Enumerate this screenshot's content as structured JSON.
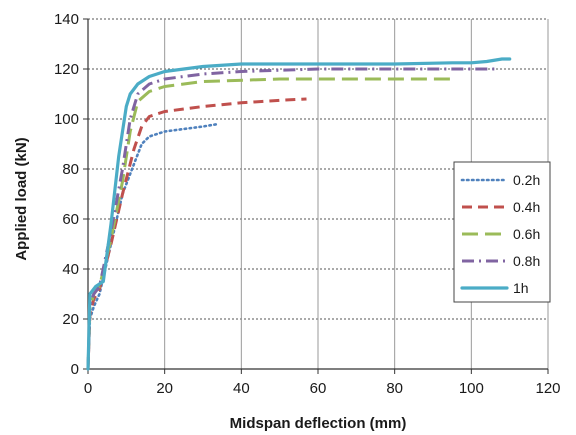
{
  "chart_data": {
    "type": "line",
    "title": "",
    "xlabel": "Midspan deflection (mm)",
    "ylabel": "Applied load (kN)",
    "xlim": [
      0,
      120
    ],
    "ylim": [
      0,
      140
    ],
    "xticks": [
      0,
      20,
      40,
      60,
      80,
      100,
      120
    ],
    "yticks": [
      0,
      20,
      40,
      60,
      80,
      100,
      120,
      140
    ],
    "grid": "horizontal dashed + vertical solid",
    "legend_position": "right",
    "series": [
      {
        "name": "0.2h",
        "color": "#4F81BD",
        "dash": "dotted",
        "points": [
          [
            0,
            0
          ],
          [
            0.5,
            20
          ],
          [
            1.5,
            25
          ],
          [
            3,
            30
          ],
          [
            6,
            50
          ],
          [
            9,
            70
          ],
          [
            12,
            82
          ],
          [
            14,
            90
          ],
          [
            16,
            93
          ],
          [
            20,
            95
          ],
          [
            25,
            96
          ],
          [
            30,
            97
          ],
          [
            34,
            98
          ]
        ]
      },
      {
        "name": "0.4h",
        "color": "#C0504D",
        "dash": "dashed",
        "points": [
          [
            0,
            0
          ],
          [
            0.5,
            22
          ],
          [
            1.5,
            28
          ],
          [
            3,
            32
          ],
          [
            6,
            50
          ],
          [
            9,
            70
          ],
          [
            12,
            88
          ],
          [
            14,
            97
          ],
          [
            16,
            101
          ],
          [
            20,
            103
          ],
          [
            30,
            105
          ],
          [
            40,
            106.5
          ],
          [
            50,
            107.5
          ],
          [
            57,
            108
          ]
        ]
      },
      {
        "name": "0.6h",
        "color": "#9BBB59",
        "dash": "longdash",
        "points": [
          [
            0,
            0
          ],
          [
            0.5,
            24
          ],
          [
            1.5,
            30
          ],
          [
            3,
            33
          ],
          [
            6,
            52
          ],
          [
            9,
            75
          ],
          [
            11,
            95
          ],
          [
            13,
            107
          ],
          [
            16,
            111
          ],
          [
            20,
            113
          ],
          [
            30,
            115
          ],
          [
            50,
            116
          ],
          [
            70,
            116
          ],
          [
            90,
            116
          ],
          [
            95,
            116
          ]
        ]
      },
      {
        "name": "0.8h",
        "color": "#8064A2",
        "dash": "dashdot",
        "points": [
          [
            0,
            0
          ],
          [
            0.5,
            25
          ],
          [
            1.5,
            30
          ],
          [
            3,
            33
          ],
          [
            6,
            55
          ],
          [
            9,
            80
          ],
          [
            11,
            100
          ],
          [
            13,
            110
          ],
          [
            16,
            114
          ],
          [
            20,
            116
          ],
          [
            30,
            118
          ],
          [
            40,
            119
          ],
          [
            60,
            120
          ],
          [
            80,
            120
          ],
          [
            100,
            120
          ],
          [
            106,
            120
          ]
        ]
      },
      {
        "name": "1h",
        "color": "#4BACC6",
        "dash": "solid",
        "points": [
          [
            0,
            0
          ],
          [
            0.5,
            30
          ],
          [
            2,
            33
          ],
          [
            4,
            35
          ],
          [
            6,
            58
          ],
          [
            8,
            85
          ],
          [
            10,
            105
          ],
          [
            11,
            110
          ],
          [
            13,
            114
          ],
          [
            16,
            117
          ],
          [
            20,
            119
          ],
          [
            25,
            120
          ],
          [
            30,
            121
          ],
          [
            40,
            122
          ],
          [
            60,
            122
          ],
          [
            80,
            122
          ],
          [
            95,
            122.5
          ],
          [
            100,
            122.5
          ],
          [
            104,
            123
          ],
          [
            108,
            124
          ],
          [
            110,
            124
          ]
        ]
      }
    ]
  }
}
